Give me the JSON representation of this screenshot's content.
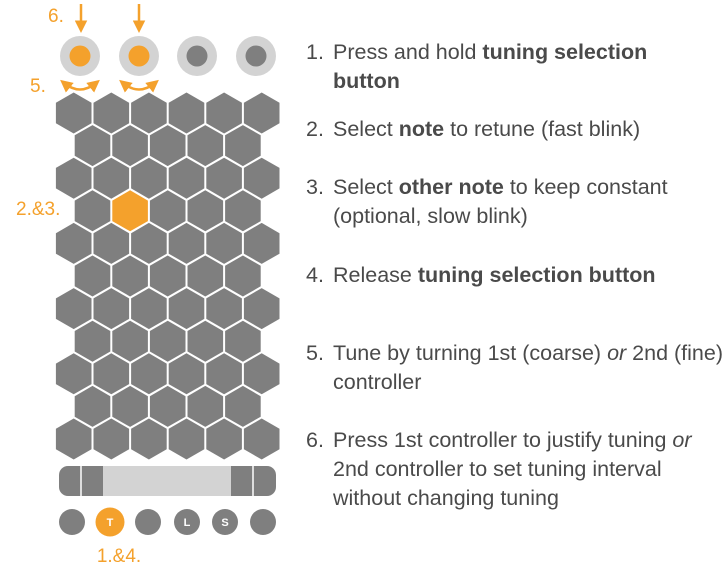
{
  "colors": {
    "accent": "#F4A12C",
    "hex_gray": "#7F7F7F",
    "knob_outer": "#D3D3D3",
    "bar_light": "#D3D3D3",
    "text": "#4a4a4a"
  },
  "labels": {
    "step6_marker": "6.",
    "step5_marker": "5.",
    "grid_marker": "2.&3.",
    "bottom_marker": "1.&4."
  },
  "buttons": [
    "",
    "T",
    "",
    "L",
    "S",
    ""
  ],
  "grid": {
    "highlight_row": 3,
    "highlight_col": 1
  },
  "steps": [
    {
      "num": "1.",
      "parts": [
        {
          "t": "Press and hold "
        },
        {
          "t": "tuning selection button",
          "b": true
        }
      ]
    },
    {
      "num": "2.",
      "parts": [
        {
          "t": "Select "
        },
        {
          "t": "note",
          "b": true
        },
        {
          "t": " to retune (fast blink)"
        }
      ]
    },
    {
      "num": "3.",
      "parts": [
        {
          "t": "Select "
        },
        {
          "t": "other note",
          "b": true
        },
        {
          "t": " to keep constant (optional, slow blink)"
        }
      ]
    },
    {
      "num": "4.",
      "parts": [
        {
          "t": "Release "
        },
        {
          "t": "tuning selection button",
          "b": true
        }
      ]
    },
    {
      "num": "5.",
      "parts": [
        {
          "t": "Tune by turning 1st (coarse) "
        },
        {
          "t": "or",
          "i": true
        },
        {
          "t": " 2nd (fine) controller"
        }
      ]
    },
    {
      "num": "6.",
      "parts": [
        {
          "t": "Press 1st controller to justify tuning "
        },
        {
          "t": "or",
          "i": true
        },
        {
          "t": " 2nd controller to set tuning interval without changing tuning"
        }
      ]
    }
  ]
}
